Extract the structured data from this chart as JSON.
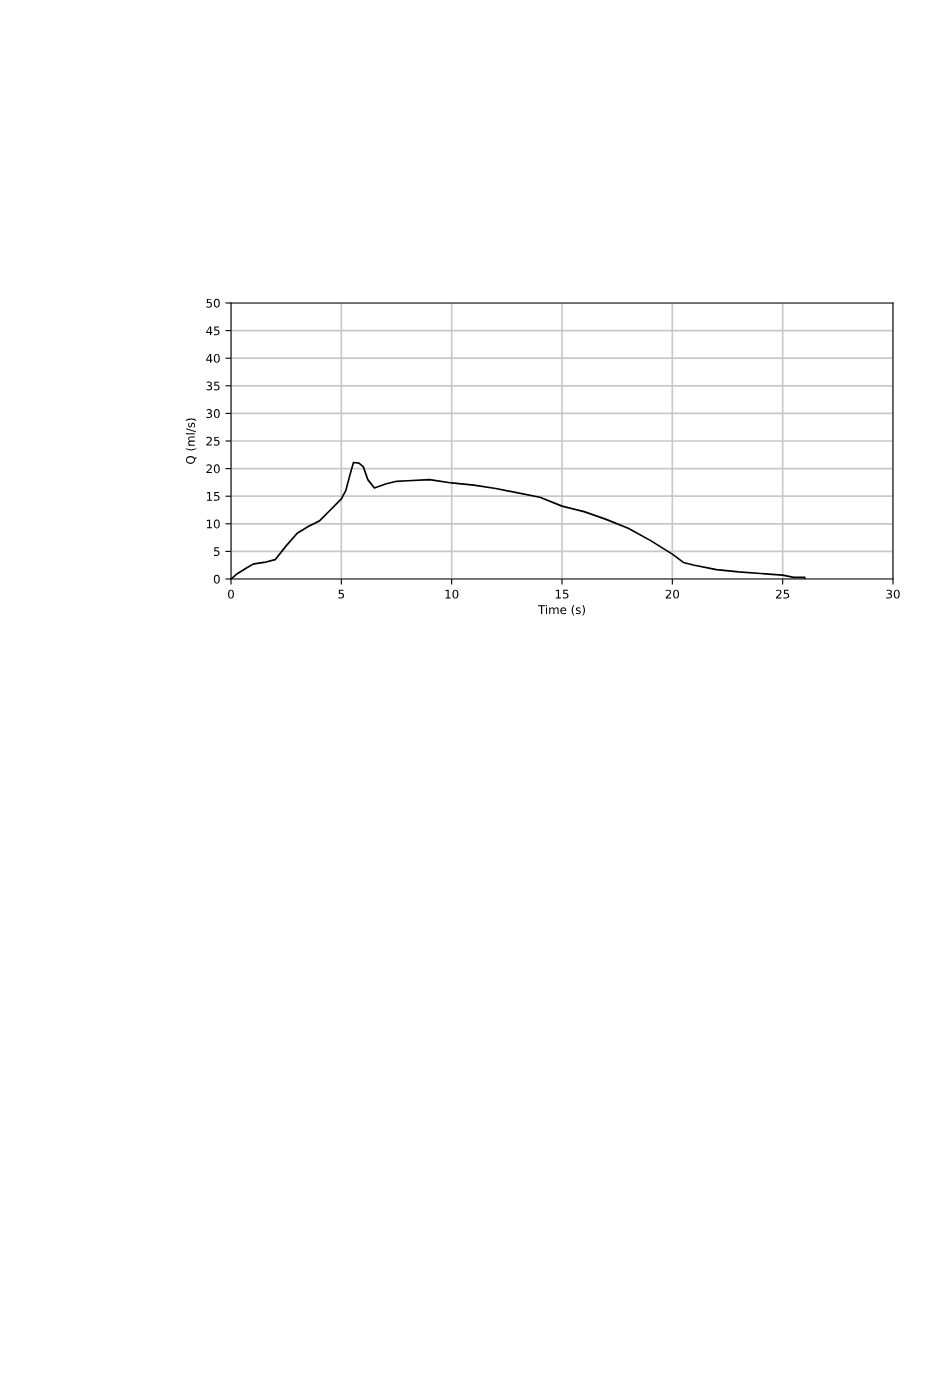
{
  "chart_data": {
    "type": "line",
    "xlabel": "Time (s)",
    "ylabel": "Q (ml/s)",
    "xlim": [
      0,
      30
    ],
    "ylim": [
      0,
      50
    ],
    "xticks": [
      0,
      5,
      10,
      15,
      20,
      25,
      30
    ],
    "yticks": [
      0,
      5,
      10,
      15,
      20,
      25,
      30,
      35,
      40,
      45,
      50
    ],
    "grid": true,
    "marker": "none",
    "line_style": "solid",
    "series": [
      {
        "color": "#000000",
        "x": [
          0,
          0.3,
          0.7,
          1,
          1.5,
          2,
          2.5,
          3,
          3.5,
          4,
          4.5,
          5,
          5.2,
          5.4,
          5.55,
          5.8,
          6,
          6.2,
          6.5,
          7,
          7.5,
          8,
          9,
          10,
          11,
          12,
          13,
          14,
          15,
          16,
          17,
          18,
          19,
          20,
          20.5,
          21,
          22,
          23,
          24,
          25,
          25.5,
          26,
          26
        ],
        "values": [
          0,
          1,
          2,
          2.7,
          3,
          3.5,
          6,
          8.3,
          9.5,
          10.5,
          12.5,
          14.5,
          16,
          19,
          21.1,
          21,
          20.3,
          18,
          16.5,
          17.2,
          17.7,
          17.8,
          18,
          17.4,
          17,
          16.4,
          15.6,
          14.8,
          13.2,
          12.2,
          10.8,
          9.2,
          7,
          4.5,
          3,
          2.5,
          1.7,
          1.3,
          1,
          0.7,
          0.3,
          0.3,
          0
        ]
      }
    ]
  }
}
